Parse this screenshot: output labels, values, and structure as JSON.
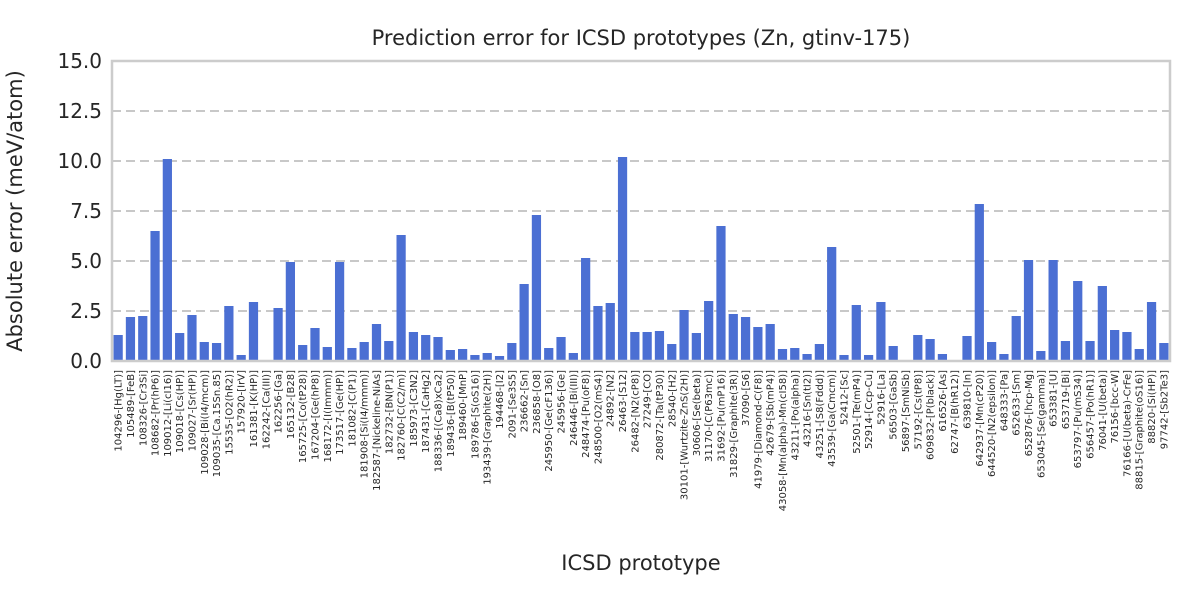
{
  "chart_data": {
    "type": "bar",
    "title": "Prediction error for ICSD prototypes (Zn, gtinv-175)",
    "xlabel": "ICSD prototype",
    "ylabel": "Absolute error (meV/atom)",
    "ylim": [
      0,
      15
    ],
    "yticks": [
      "0.0",
      "2.5",
      "5.0",
      "7.5",
      "10.0",
      "12.5",
      "15.0"
    ],
    "grid": true,
    "bar_color": "#4b6fd3",
    "categories": [
      "104296-[Hg(LT)]",
      "105489-[FeB]",
      "108326-[Cr3Si]",
      "108682-[Pr(hP6)]",
      "109012-[Li(cI16)]",
      "109018-[Cs(HP)]",
      "109027-[Sr(HP)]",
      "109028-[Bi(I4/mcm)]",
      "109035-[Ca.15Sn.85]",
      "15535-[O2(hR2)]",
      "157920-[IrV]",
      "161381-[K(HP)]",
      "162242-[Ca(III)]",
      "162256-[Ga]",
      "165132-[B28]",
      "165725-[Co(tP28)]",
      "167204-[Ge(hP8)]",
      "168172-[I(Immm)]",
      "173517-[Ge(HP)]",
      "181082-[C(P1)]",
      "181908-[Si(I4/mmm)]",
      "182587-[Nickeline-NiAs]",
      "182732-[BN(P1)]",
      "182760-[C(C2/m)]",
      "185973-[C3N2]",
      "187431-[CaHg2]",
      "188336-[(Ca8)xCa2]",
      "189436-[B(tP50)]",
      "189460-[MnP]",
      "189786-[S(oS16)]",
      "193439-[Graphite(2H)]",
      "194468-[I2]",
      "2091-[Se3S5]",
      "236662-[Sn]",
      "236858-[O8]",
      "245950-[Ge(cF136)]",
      "245956-[Ge]",
      "246446-[Bi(III)]",
      "248474-[Pu(oF8)]",
      "248500-[O2(mS4)]",
      "24892-[N2]",
      "26463-[S12]",
      "26482-[N2(cP8)]",
      "27249-[CO]",
      "280872-[Ta(tP30)]",
      "28540-[H2]",
      "30101-[Wurtzite-ZnS(2H)]",
      "30606-[Se(beta)]",
      "31170-[C(P63mc)]",
      "31692-[Pu(mP16)]",
      "31829-[Graphite(3R)]",
      "37090-[S6]",
      "41979-[Diamond-C(F8)]",
      "42679-[Sb(mP4)]",
      "43058-[Mn(alpha)-Mn(cI58)]",
      "43211-[Po(alpha)]",
      "43216-[Sn(tI2)]",
      "43251-[S8(Fddd)]",
      "43539-[Ga(Cmcm)]",
      "52412-[Sc]",
      "52501-[Te(mP4)]",
      "52914-[Ccp-Cu]",
      "52916-[La]",
      "56503-[GaSb]",
      "56897-[SmNiSb]",
      "57192-[Cs(tP8)]",
      "609832-[P(black)]",
      "616526-[As]",
      "62747-[B(hR12)]",
      "639810-[In]",
      "642937-[Mn(cP20)]",
      "644520-[N2(epsilon)]",
      "648333-[Pa]",
      "652633-[Sm]",
      "652876-[hcp-Mg]",
      "653045-[Se(gamma)]",
      "653381-[U]",
      "653719-[Bi]",
      "653797-[Pu(mS34)]",
      "656457-[Po(hR1)]",
      "76041-[U(beta)]",
      "76156-[bcc-W]",
      "76166-[U(beta)-CrFe]",
      "88815-[Graphite(oS16)]",
      "88820-[Si(HP)]",
      "97742-[Sb2Te3]"
    ],
    "values": [
      1.3,
      2.2,
      2.25,
      6.5,
      10.1,
      1.4,
      2.3,
      0.95,
      0.9,
      2.75,
      0.3,
      2.95,
      0.0,
      2.65,
      4.95,
      0.8,
      1.65,
      0.7,
      4.95,
      0.65,
      0.95,
      1.85,
      1.0,
      6.3,
      1.45,
      1.3,
      1.2,
      0.55,
      0.6,
      0.3,
      0.4,
      0.25,
      0.9,
      3.85,
      7.3,
      0.65,
      1.2,
      0.4,
      5.15,
      2.75,
      2.9,
      10.2,
      1.45,
      1.45,
      1.5,
      0.85,
      2.55,
      1.4,
      3.0,
      6.75,
      2.35,
      2.2,
      1.7,
      1.85,
      0.6,
      0.65,
      0.35,
      0.85,
      5.7,
      0.3,
      2.8,
      0.3,
      2.95,
      0.75,
      0.0,
      1.3,
      1.1,
      0.35,
      0.0,
      1.25,
      7.85,
      0.95,
      0.35,
      2.25,
      5.05,
      0.5,
      5.05,
      1.0,
      4.0,
      1.0,
      3.75,
      1.55,
      1.45,
      0.6,
      2.95,
      0.9
    ]
  }
}
